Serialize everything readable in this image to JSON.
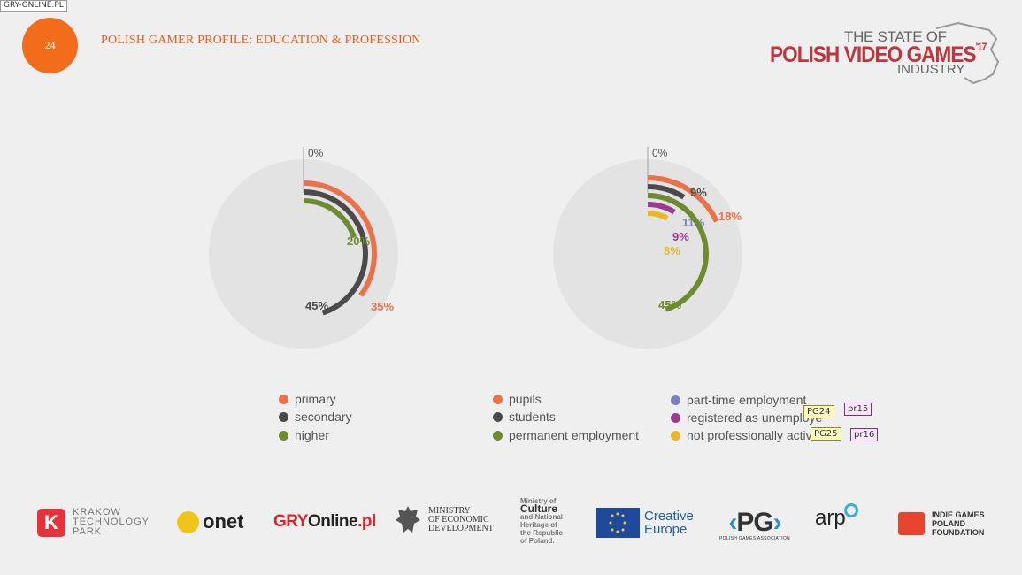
{
  "watermark": "GRY-ONLINE.PL",
  "header": {
    "page_number": "24",
    "title": "POLISH GAMER PROFILE: EDUCATION & PROFESSION"
  },
  "brand": {
    "line1": "THE STATE OF",
    "line2": "POLISH VIDEO GAMES",
    "line2_sup": "'17",
    "line3": "INDUSTRY"
  },
  "colors": {
    "accent": "#f26c1b",
    "title": "#e65d1d",
    "brand_red": "#c0343b",
    "track": "#e3e3e3"
  },
  "chart_data": [
    {
      "type": "radial-bar",
      "title": "",
      "start_label": "0%",
      "max_value": 100,
      "series": [
        {
          "name": "primary",
          "value": 35,
          "label": "35%",
          "color": "#e8734a"
        },
        {
          "name": "secondary",
          "value": 45,
          "label": "45%",
          "color": "#4a4a4d"
        },
        {
          "name": "higher",
          "value": 20,
          "label": "20%",
          "color": "#6e8b2f"
        }
      ]
    },
    {
      "type": "radial-bar",
      "title": "",
      "start_label": "0%",
      "max_value": 100,
      "series": [
        {
          "name": "pupils",
          "value": 18,
          "label": "18%",
          "color": "#e8734a"
        },
        {
          "name": "students",
          "value": 9,
          "label": "9%",
          "color": "#4a4a4d"
        },
        {
          "name": "part-time employment",
          "value": 11,
          "label": "11%",
          "color": "#7b7fbf"
        },
        {
          "name": "registered as unemployed",
          "value": 9,
          "label": "9%",
          "color": "#9b3a93"
        },
        {
          "name": "not professionally active",
          "value": 8,
          "label": "8%",
          "color": "#e6b82a"
        },
        {
          "name": "permanent employment",
          "value": 45,
          "label": "45%",
          "color": "#6e8b2f"
        }
      ]
    }
  ],
  "legend": {
    "left": [
      {
        "label": "primary",
        "color": "#e8734a"
      },
      {
        "label": "secondary",
        "color": "#4a4a4d"
      },
      {
        "label": "higher",
        "color": "#6e8b2f"
      }
    ],
    "middle": [
      {
        "label": "pupils",
        "color": "#e8734a"
      },
      {
        "label": "students",
        "color": "#4a4a4d"
      },
      {
        "label": "permanent employment",
        "color": "#6e8b2f"
      }
    ],
    "right": [
      {
        "label": "part-time employment",
        "color": "#7b7fbf"
      },
      {
        "label": "registered as unemploye",
        "color": "#9b3a93"
      },
      {
        "label": "not professionally active",
        "color": "#e6b82a"
      }
    ]
  },
  "tags": {
    "pg24": "PG24",
    "pr15": "pr15",
    "pg25": "PG25",
    "pr16": "pr16"
  },
  "logos": {
    "ktp": {
      "letter": "K",
      "text1": "KRAKOW",
      "text2": "TECHNOLOGY",
      "text3": "PARK"
    },
    "onet": "onet",
    "gry": {
      "a": "GRY",
      "b": "Online",
      "c": ".pl"
    },
    "ministry": {
      "l1": "MINISTRY",
      "l2": "OF ECONOMIC",
      "l3": "DEVELOPMENT"
    },
    "culture": {
      "l1": "Ministry of",
      "l2": "Culture",
      "l3": "and National",
      "l4": "Heritage of",
      "l5": "the Republic",
      "l6": "of Poland."
    },
    "creative_europe": {
      "l1": "Creative",
      "l2": "Europe"
    },
    "pg": {
      "main": "PG",
      "sub": "POLISH GAMES ASSOCIATION"
    },
    "arp": "arp",
    "igf": {
      "l1": "INDIE GAMES",
      "l2": "POLAND",
      "l3": "FOUNDATION"
    }
  }
}
